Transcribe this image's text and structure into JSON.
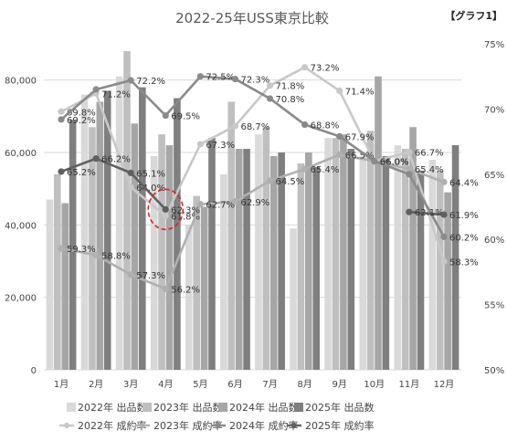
{
  "chart_data": {
    "type": "bar",
    "title": "2022-25年USS東京比較",
    "tag": "【グラフ1】",
    "categories": [
      "1月",
      "2月",
      "3月",
      "4月",
      "5月",
      "6月",
      "7月",
      "8月",
      "9月",
      "10月",
      "11月",
      "12月"
    ],
    "y_left": {
      "ylim": [
        0,
        90000
      ],
      "ticks": [
        "0",
        "20,000",
        "40,000",
        "60,000",
        "80,000"
      ],
      "tick_values": [
        0,
        20000,
        40000,
        60000,
        80000
      ]
    },
    "y_right": {
      "ylim": [
        50,
        75
      ],
      "ticks": [
        "50%",
        "55%",
        "60%",
        "65%",
        "70%",
        "75%"
      ],
      "tick_values": [
        50,
        55,
        60,
        65,
        70,
        75
      ]
    },
    "bar_series": [
      {
        "name": "2022年 出品数",
        "color": "#d9d9d9",
        "values": [
          47000,
          76000,
          81000,
          59000,
          40000,
          54000,
          65000,
          39000,
          64000,
          59000,
          62000,
          58000
        ]
      },
      {
        "name": "2023年 出品数",
        "color": "#bfbfbf",
        "values": [
          54000,
          67000,
          88000,
          65000,
          48000,
          74000,
          67000,
          57000,
          64000,
          66000,
          61000,
          55000
        ]
      },
      {
        "name": "2024年 出品数",
        "color": "#a6a6a6",
        "values": [
          46000,
          74000,
          68000,
          62000,
          45000,
          61000,
          59000,
          60000,
          65000,
          81000,
          67000,
          49000
        ]
      },
      {
        "name": "2025年 出品数",
        "color": "#7f7f7f",
        "values": [
          69000,
          77000,
          78000,
          75000,
          64000,
          61000,
          60000,
          56000,
          61000,
          59000,
          55000,
          62000
        ]
      }
    ],
    "line_series": [
      {
        "name": "2022年 成約率",
        "color": "#c8c8c8",
        "values": [
          69.8,
          71.2,
          64.0,
          61.8,
          67.3,
          68.7,
          71.8,
          73.2,
          71.4,
          66.0,
          66.7,
          58.3
        ],
        "labels": [
          "69.8%",
          "71.2%",
          "64.0%",
          "61.8%",
          "67.3%",
          "68.7%",
          "71.8%",
          "73.2%",
          "71.4%",
          "66.0%",
          "66.7%",
          "58.3%"
        ]
      },
      {
        "name": "2023年 成約率",
        "color": "#b0b0b0",
        "values": [
          59.3,
          58.8,
          57.3,
          56.2,
          62.7,
          62.9,
          64.5,
          65.4,
          66.5,
          66.0,
          65.4,
          64.4
        ],
        "labels": [
          "59.3%",
          "58.8%",
          "57.3%",
          "56.2%",
          "62.7%",
          "62.9%",
          "64.5%",
          "65.4%",
          "66.5%",
          "66.0%",
          "65.4%",
          "64.4%"
        ]
      },
      {
        "name": "2024年 成約率",
        "color": "#8a8a8a",
        "values": [
          69.2,
          71.5,
          72.2,
          69.5,
          72.5,
          72.3,
          70.8,
          68.8,
          67.9,
          66.0,
          65.0,
          60.2
        ],
        "labels": [
          "69.2%",
          "",
          "72.2%",
          "69.5%",
          "72.5%",
          "72.3%",
          "70.8%",
          "68.8%",
          "67.9%",
          "66.0%",
          "",
          "60.2%"
        ]
      },
      {
        "name": "2025年 成約率",
        "color": "#606060",
        "values": [
          65.2,
          66.2,
          65.1,
          62.3,
          null,
          null,
          null,
          null,
          null,
          null,
          62.1,
          61.9
        ],
        "labels": [
          "65.2%",
          "66.2%",
          "65.1%",
          "62.3%",
          "",
          "",
          "",
          "",
          "",
          "",
          "62.1%",
          "61.9%"
        ]
      }
    ],
    "annotation": {
      "type": "dashed-circle",
      "color": "#e02020",
      "month": "4月",
      "series": "2025年 成約率"
    },
    "legend_placement": "bottom",
    "grid": "horizontal"
  }
}
